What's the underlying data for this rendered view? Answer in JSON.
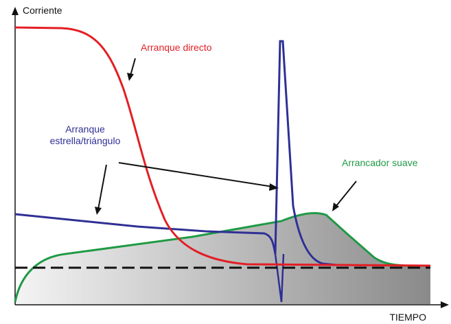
{
  "chart_data": {
    "type": "line",
    "title": "",
    "ylabel": "Corriente",
    "xlabel": "TIEMPO",
    "grid": false,
    "colors": {
      "direct": "#e31e24",
      "star_delta": "#2f2f96",
      "soft": "#1f9a45",
      "nominal": "#111111",
      "area_dark": "#8a8a8a",
      "area_light": "#f4f4f4"
    },
    "annotations": {
      "direct": "Arranque directo",
      "star_delta_line1": "Arranque",
      "star_delta_line2": "estrella/triángulo",
      "soft": "Arrancador suave"
    }
  }
}
